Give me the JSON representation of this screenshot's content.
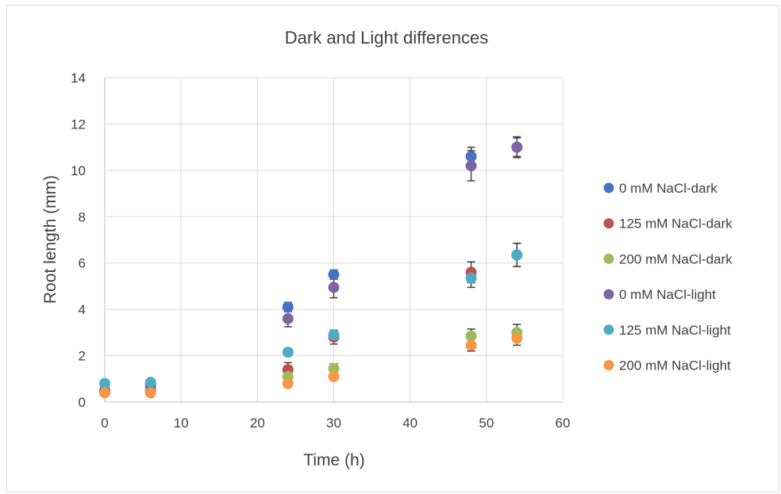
{
  "chart_data": {
    "type": "scatter",
    "title": "Dark and Light differences",
    "xlabel": "Time (h)",
    "ylabel": "Root length (mm)",
    "xlim": [
      0,
      60
    ],
    "ylim": [
      0,
      14
    ],
    "xticks": [
      0,
      10,
      20,
      30,
      40,
      50,
      60
    ],
    "yticks": [
      0,
      2,
      4,
      6,
      8,
      10,
      12,
      14
    ],
    "grid": true,
    "legend_position": "right",
    "series": [
      {
        "name": "0 mM NaCl-dark",
        "color": "#4472C4",
        "x": [
          0,
          6,
          24,
          30,
          48,
          54
        ],
        "y": [
          0.5,
          0.8,
          4.1,
          5.5,
          10.6,
          11.0
        ],
        "err": [
          0.1,
          0.1,
          0.2,
          0.2,
          0.4,
          0.4
        ]
      },
      {
        "name": "125 mM NaCl-dark",
        "color": "#C0504D",
        "x": [
          0,
          6,
          24,
          30,
          48,
          54
        ],
        "y": [
          0.45,
          0.5,
          1.4,
          2.8,
          5.6,
          6.35
        ],
        "err": [
          0.1,
          0.1,
          0.3,
          0.3,
          0.45,
          0.5
        ]
      },
      {
        "name": "200 mM NaCl-dark",
        "color": "#9BBB59",
        "x": [
          0,
          6,
          24,
          30,
          48,
          54
        ],
        "y": [
          0.45,
          0.45,
          1.1,
          1.45,
          2.85,
          3.0
        ],
        "err": [
          0.05,
          0.05,
          0.15,
          0.2,
          0.3,
          0.35
        ]
      },
      {
        "name": "0 mM NaCl-light",
        "color": "#8064A2",
        "x": [
          0,
          6,
          24,
          30,
          48,
          54
        ],
        "y": [
          0.5,
          0.7,
          3.6,
          4.95,
          10.2,
          11.0
        ],
        "err": [
          0.1,
          0.1,
          0.35,
          0.45,
          0.65,
          0.45
        ]
      },
      {
        "name": "125 mM NaCl-light",
        "color": "#4BACC6",
        "x": [
          0,
          6,
          24,
          30,
          48,
          54
        ],
        "y": [
          0.8,
          0.85,
          2.15,
          2.9,
          5.35,
          6.35
        ],
        "err": [
          0.1,
          0.1,
          0.15,
          0.2,
          0.4,
          0.5
        ]
      },
      {
        "name": "200 mM NaCl-light",
        "color": "#F79646",
        "x": [
          0,
          6,
          24,
          30,
          48,
          54
        ],
        "y": [
          0.4,
          0.4,
          0.8,
          1.1,
          2.45,
          2.75
        ],
        "err": [
          0.05,
          0.05,
          0.1,
          0.15,
          0.25,
          0.3
        ]
      }
    ]
  }
}
